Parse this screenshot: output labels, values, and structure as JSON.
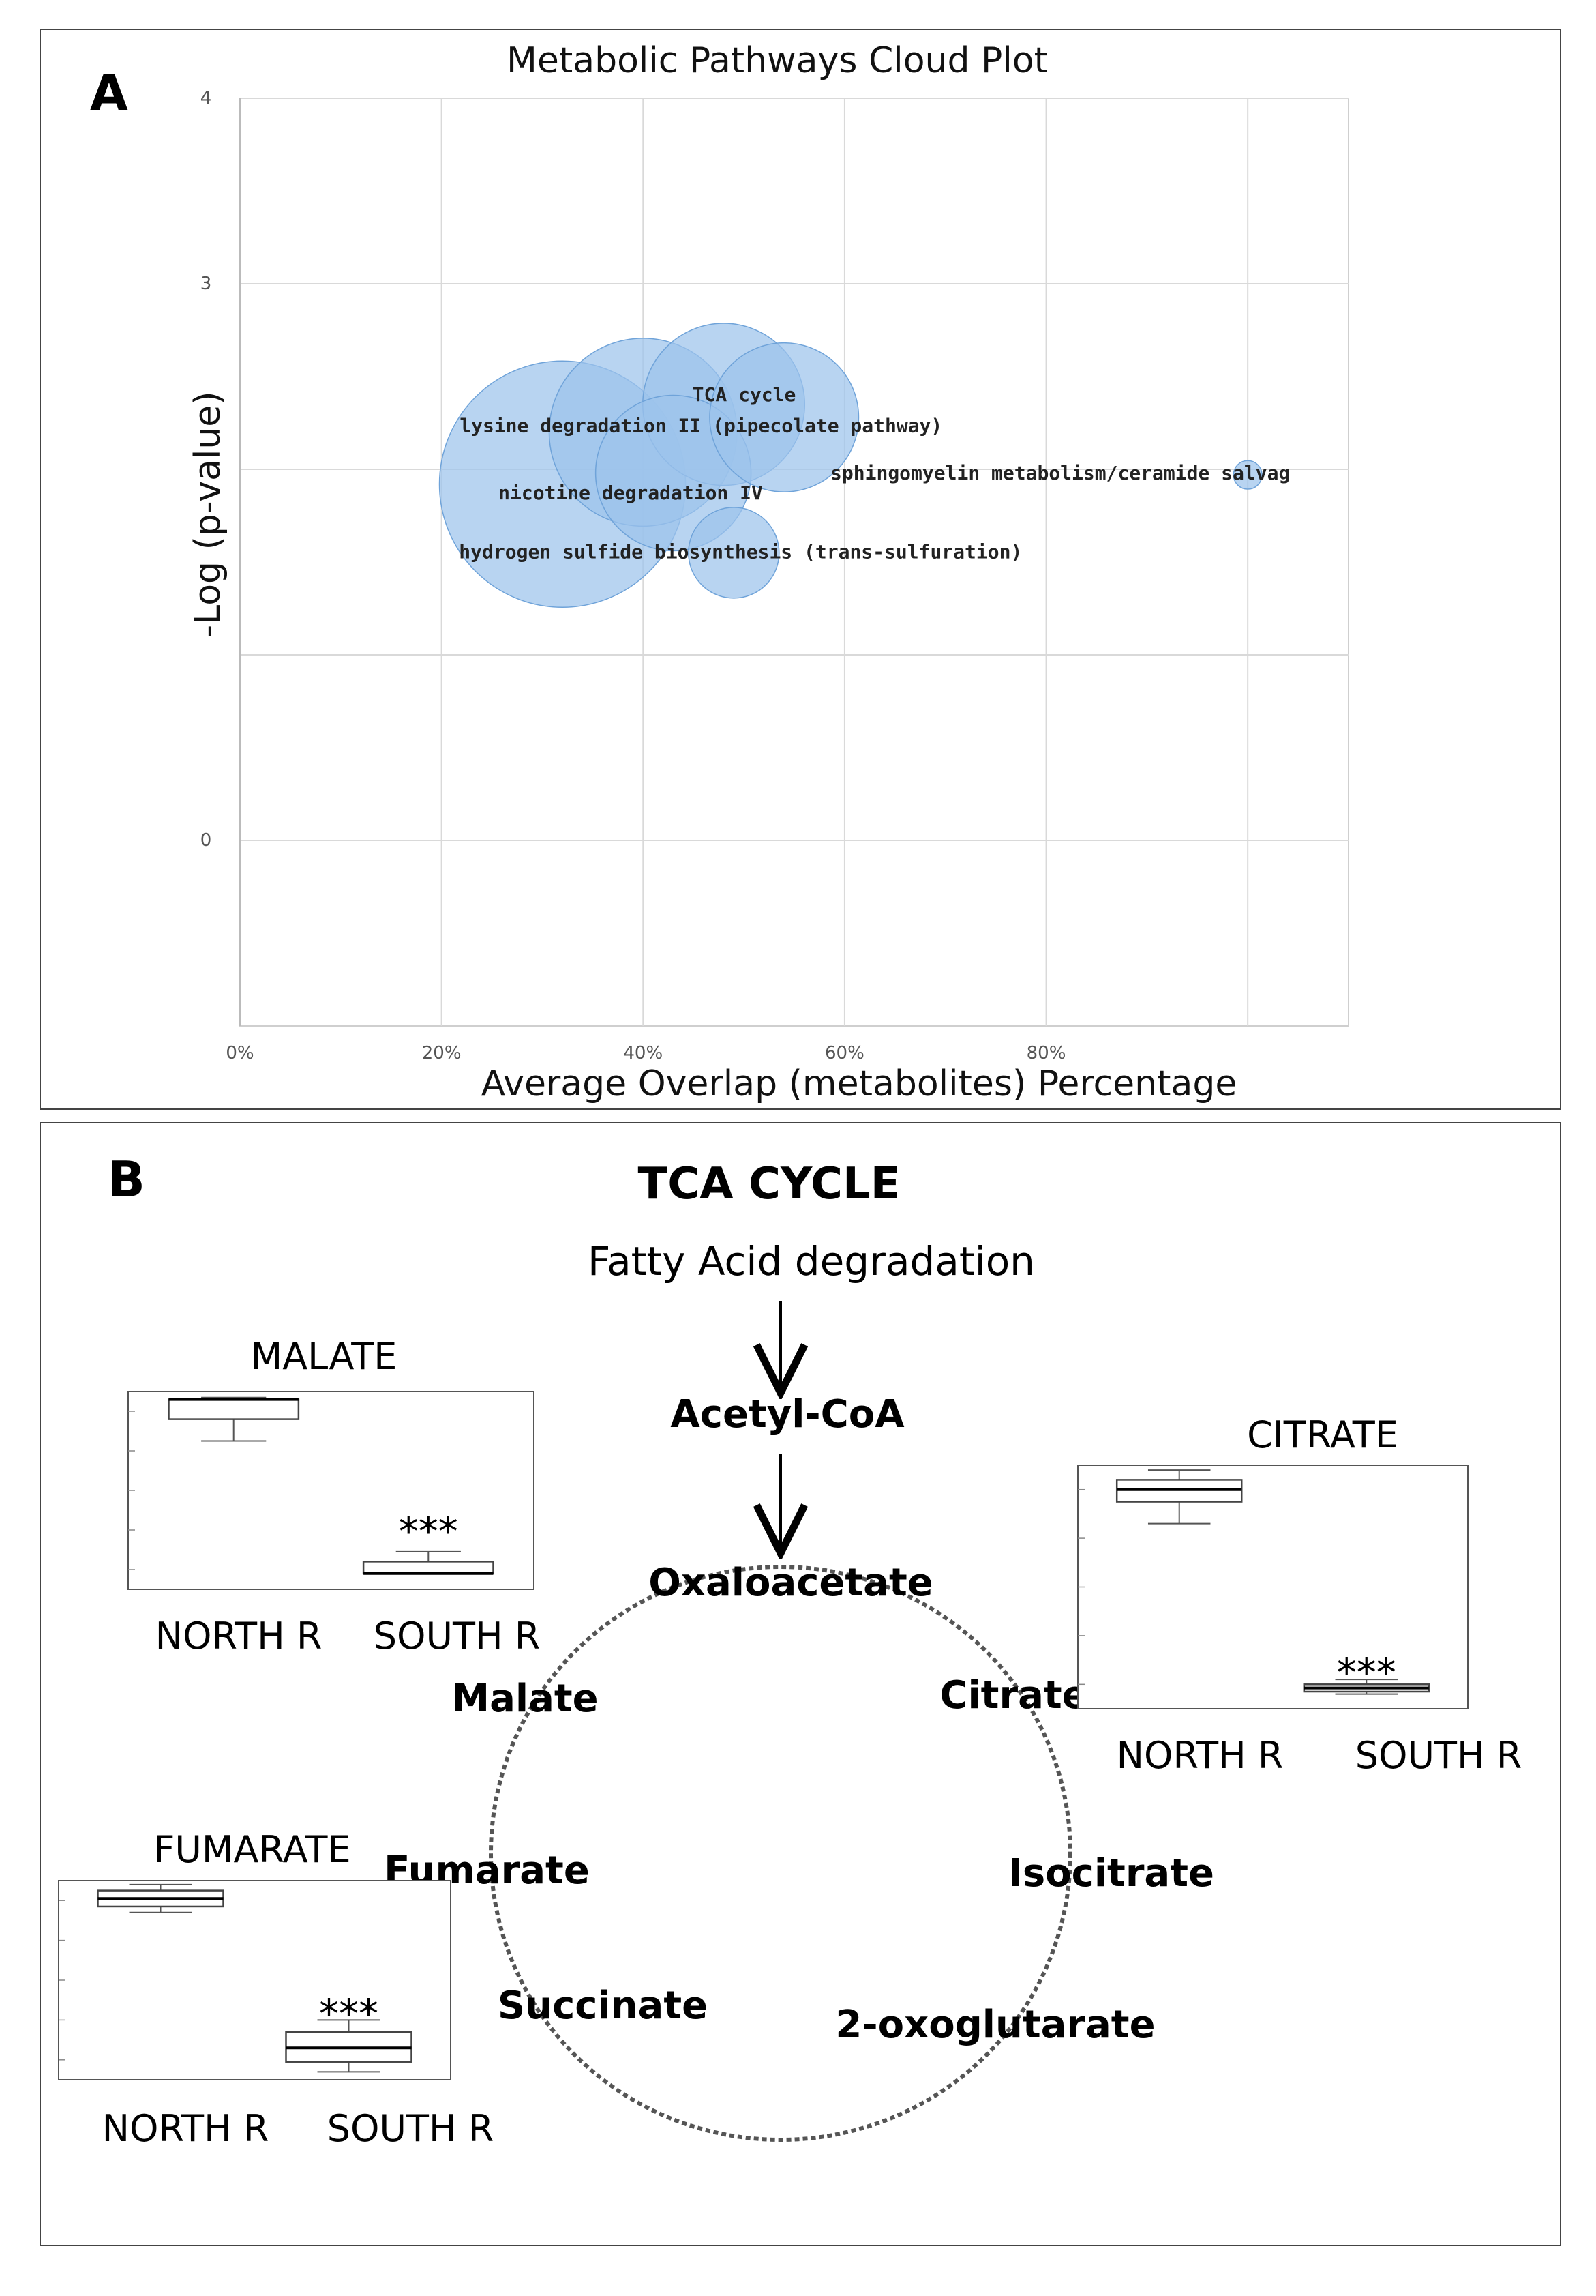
{
  "panel_a": {
    "letter": "A",
    "chart_data": {
      "type": "scatter",
      "subtype": "bubble",
      "title": "Metabolic Pathways Cloud Plot",
      "xlabel": "Average Overlap (metabolites) Percentage",
      "ylabel": "-Log (p-value)",
      "x_ticks": [
        "0%",
        "20%",
        "40%",
        "60%",
        "80%"
      ],
      "x_tick_values": [
        0,
        20,
        40,
        60,
        80
      ],
      "y_ticks": [
        "4",
        "3",
        "0"
      ],
      "y_tick_values": [
        4,
        3,
        0
      ],
      "xlim": [
        0,
        110
      ],
      "ylim": [
        -1,
        4
      ],
      "grid": true,
      "bubble_color": "#9cc3ec",
      "bubble_edge": "#6fa3d9",
      "points": [
        {
          "label": "TCA cycle",
          "x": 48,
          "y": 2.35,
          "size": 1.25
        },
        {
          "label": "",
          "x": 54,
          "y": 2.28,
          "size": 1.15
        },
        {
          "label": "lysine degradation II (pipecolate pathway)",
          "x": 40,
          "y": 2.2,
          "size": 1.45
        },
        {
          "label": "nicotine degradation IV",
          "x": 32,
          "y": 1.92,
          "size": 1.9
        },
        {
          "label": "",
          "x": 43,
          "y": 1.98,
          "size": 1.2
        },
        {
          "label": "hydrogen sulfide biosynthesis (trans-sulfuration)",
          "x": 49,
          "y": 1.55,
          "size": 0.7
        },
        {
          "label": "sphingomyelin metabolism/ceramide salvag",
          "x": 100,
          "y": 1.97,
          "size": 0.22
        }
      ]
    }
  },
  "panel_b": {
    "letter": "B",
    "title": "TCA CYCLE",
    "input": "Fatty Acid degradation",
    "acetyl": "Acetyl-CoA",
    "cycle": [
      "Oxaloacetate",
      "Citrate",
      "Isocitrate",
      "2-oxoglutarate",
      "Succinate",
      "Fumarate",
      "Malate"
    ],
    "boxplots": [
      {
        "title": "MALATE",
        "type": "box",
        "categories": [
          "NORTH R",
          "SOUTH R"
        ],
        "significance": "***",
        "ylim": [
          0,
          1
        ],
        "boxes": [
          {
            "min": 0.75,
            "q1": 0.86,
            "median": 0.96,
            "q3": 0.96,
            "max": 0.97
          },
          {
            "min": 0.08,
            "q1": 0.08,
            "median": 0.08,
            "q3": 0.14,
            "max": 0.19
          }
        ]
      },
      {
        "title": "CITRATE",
        "type": "box",
        "categories": [
          "NORTH R",
          "SOUTH R"
        ],
        "significance": "***",
        "ylim": [
          0,
          1
        ],
        "boxes": [
          {
            "min": 0.76,
            "q1": 0.85,
            "median": 0.9,
            "q3": 0.94,
            "max": 0.98
          },
          {
            "min": 0.06,
            "q1": 0.07,
            "median": 0.085,
            "q3": 0.1,
            "max": 0.12
          }
        ]
      },
      {
        "title": "FUMARATE",
        "type": "box",
        "categories": [
          "NORTH R",
          "SOUTH R"
        ],
        "significance": "***",
        "ylim": [
          0,
          1
        ],
        "boxes": [
          {
            "min": 0.84,
            "q1": 0.87,
            "median": 0.91,
            "q3": 0.95,
            "max": 0.98
          },
          {
            "min": 0.04,
            "q1": 0.09,
            "median": 0.16,
            "q3": 0.24,
            "max": 0.3
          }
        ]
      }
    ]
  }
}
